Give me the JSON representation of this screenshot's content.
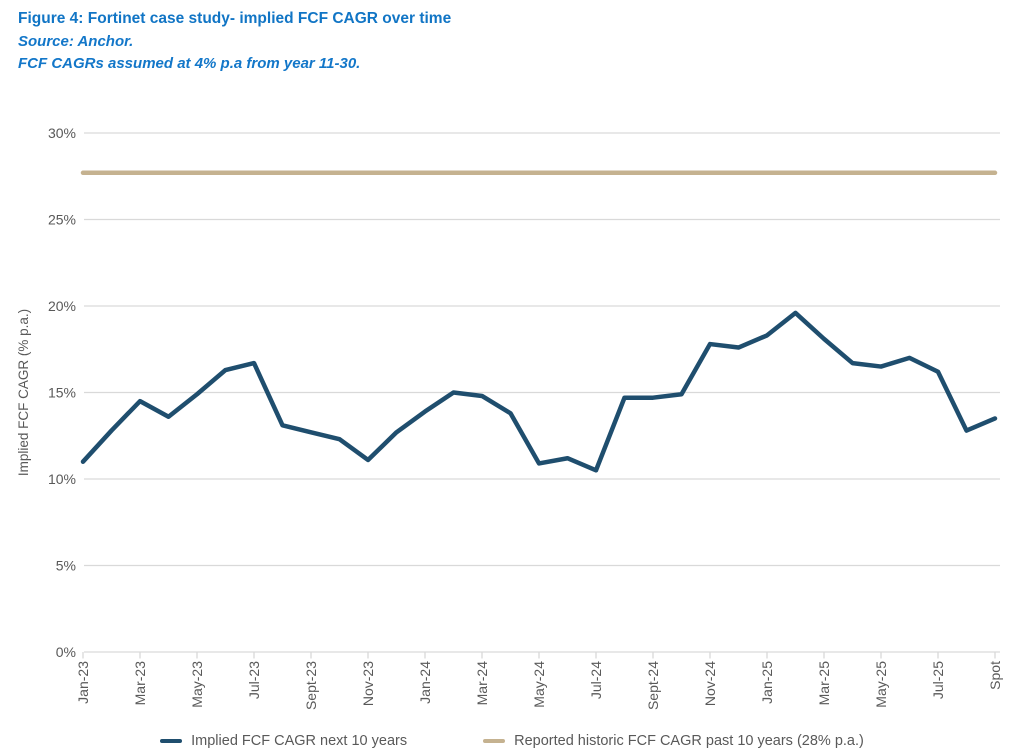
{
  "header": {
    "title": "Figure 4: Fortinet case study- implied FCF CAGR over time",
    "source": "Source: Anchor.",
    "note": "FCF CAGRs assumed at 4% p.a from year 11-30."
  },
  "colors": {
    "title_blue": "#1175c5",
    "series_navy": "#1f4e6e",
    "historic_tan": "#c5b290",
    "axis_text": "#595959",
    "gridline": "#d9d9d9"
  },
  "chart_data": {
    "type": "line",
    "title": "Figure 4: Fortinet case study- implied FCF CAGR over time",
    "xlabel": "",
    "ylabel": "Implied FCF CAGR (% p.a.)",
    "ylim": [
      0,
      30
    ],
    "grid": true,
    "legend_position": "bottom",
    "categories": [
      "Jan-23",
      "Feb-23",
      "Mar-23",
      "Apr-23",
      "May-23",
      "Jun-23",
      "Jul-23",
      "Aug-23",
      "Sept-23",
      "Oct-23",
      "Nov-23",
      "Dec-23",
      "Jan-24",
      "Feb-24",
      "Mar-24",
      "Apr-24",
      "May-24",
      "Jun-24",
      "Jul-24",
      "Aug-24",
      "Sept-24",
      "Oct-24",
      "Nov-24",
      "Dec-24",
      "Jan-25",
      "Feb-25",
      "Mar-25",
      "Apr-25",
      "May-25",
      "Jun-25",
      "Jul-25",
      "Aug-25",
      "Spot"
    ],
    "y_ticks": [
      {
        "v": 0,
        "label": "0%"
      },
      {
        "v": 5,
        "label": "5%"
      },
      {
        "v": 10,
        "label": "10%"
      },
      {
        "v": 15,
        "label": "15%"
      },
      {
        "v": 20,
        "label": "20%"
      },
      {
        "v": 25,
        "label": "25%"
      },
      {
        "v": 30,
        "label": "30%"
      }
    ],
    "x_ticks": [
      {
        "i": 0,
        "label": "Jan-23"
      },
      {
        "i": 2,
        "label": "Mar-23"
      },
      {
        "i": 4,
        "label": "May-23"
      },
      {
        "i": 6,
        "label": "Jul-23"
      },
      {
        "i": 8,
        "label": "Sept-23"
      },
      {
        "i": 10,
        "label": "Nov-23"
      },
      {
        "i": 12,
        "label": "Jan-24"
      },
      {
        "i": 14,
        "label": "Mar-24"
      },
      {
        "i": 16,
        "label": "May-24"
      },
      {
        "i": 18,
        "label": "Jul-24"
      },
      {
        "i": 20,
        "label": "Sept-24"
      },
      {
        "i": 22,
        "label": "Nov-24"
      },
      {
        "i": 24,
        "label": "Jan-25"
      },
      {
        "i": 26,
        "label": "Mar-25"
      },
      {
        "i": 28,
        "label": "May-25"
      },
      {
        "i": 30,
        "label": "Jul-25"
      },
      {
        "i": 32,
        "label": "Spot"
      }
    ],
    "series": [
      {
        "name": "Implied FCF CAGR next 10 years",
        "color_key": "series_navy",
        "values": [
          11.0,
          12.8,
          14.5,
          13.6,
          14.9,
          16.3,
          16.7,
          13.1,
          12.7,
          12.3,
          11.1,
          12.7,
          13.9,
          15.0,
          14.8,
          13.8,
          10.9,
          11.2,
          10.5,
          14.7,
          14.7,
          14.9,
          17.8,
          17.6,
          18.3,
          19.6,
          18.1,
          16.7,
          16.5,
          17.0,
          16.2,
          12.8,
          13.5
        ]
      },
      {
        "name": "Reported historic FCF CAGR past 10 years (28% p.a.)",
        "color_key": "historic_tan",
        "type": "hline",
        "value": 27.7,
        "stated_rate": "28% p.a."
      }
    ]
  }
}
